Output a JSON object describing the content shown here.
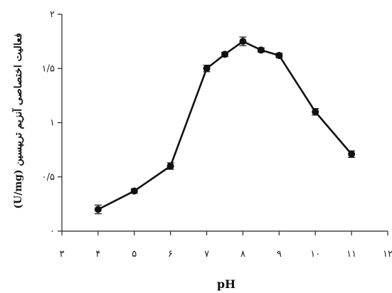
{
  "chart_data": {
    "type": "line",
    "xlabel": "pH",
    "ylabel": "(U/mg) فعالیت اختصاصی آنزیم تریپسین",
    "x_ticks": [
      "۳",
      "۴",
      "۵",
      "۶",
      "۷",
      "۸",
      "۹",
      "۱۰",
      "۱۱",
      "۱۲"
    ],
    "x_tick_values": [
      3,
      4,
      5,
      6,
      7,
      8,
      9,
      10,
      11,
      12
    ],
    "y_ticks": [
      "۰",
      "۰/۵",
      "۱",
      "۱/۵",
      "۲"
    ],
    "y_tick_values": [
      0,
      0.5,
      1,
      1.5,
      2
    ],
    "xlim": [
      3,
      12
    ],
    "ylim": [
      0,
      2
    ],
    "grid": false,
    "series": [
      {
        "x": [
          4,
          5,
          6,
          7,
          7.5,
          8,
          8.5,
          9,
          10,
          11
        ],
        "y": [
          0.2,
          0.37,
          0.6,
          1.5,
          1.63,
          1.75,
          1.67,
          1.62,
          1.1,
          0.71
        ],
        "error": [
          0.04,
          0.02,
          0.03,
          0.03,
          0.02,
          0.04,
          0.02,
          0.02,
          0.03,
          0.03
        ]
      }
    ],
    "colors": {
      "line": "#111111",
      "marker": "#111111",
      "axis": "#222222"
    }
  }
}
